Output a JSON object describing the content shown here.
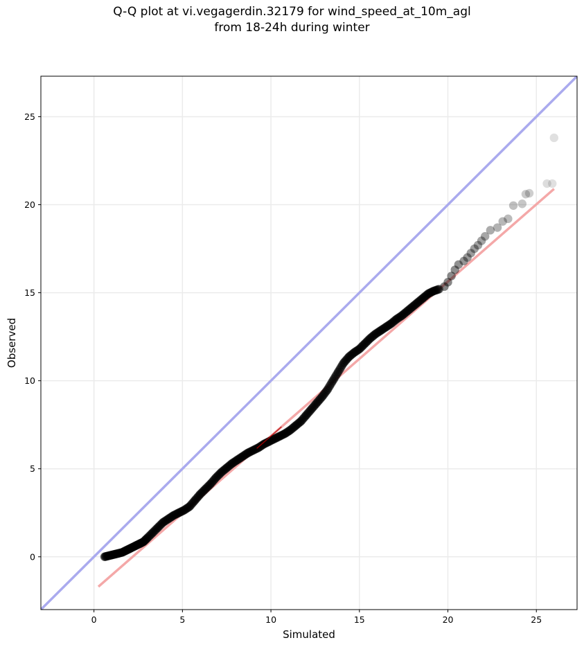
{
  "chart_data": {
    "type": "scatter",
    "title_line1": "Q-Q plot at vi.vegagerdin.32179 for wind_speed_at_10m_agl",
    "title_line2": "from 18-24h during winter",
    "xlabel": "Simulated",
    "ylabel": "Observed",
    "xlim": [
      -3.0,
      27.3
    ],
    "ylim": [
      -3.0,
      27.3
    ],
    "x_ticks": [
      0,
      5,
      10,
      15,
      20,
      25
    ],
    "y_ticks": [
      0,
      5,
      10,
      15,
      20,
      25
    ],
    "grid": true,
    "colors": {
      "points": "#000000",
      "identity_line": "#aaaaee",
      "fit_line": "#f4a8a8",
      "fit_inner": "#b00000"
    },
    "identity_line": {
      "x": [
        -3.0,
        27.3
      ],
      "y": [
        -3.0,
        27.3
      ]
    },
    "fit_line": {
      "x": [
        0.25,
        26.0
      ],
      "y": [
        -1.7,
        20.9
      ]
    },
    "points": {
      "x": [
        0.6,
        0.8,
        1.0,
        1.2,
        1.4,
        1.6,
        1.8,
        2.0,
        2.2,
        2.4,
        2.6,
        2.8,
        3.0,
        3.3,
        3.6,
        3.9,
        4.2,
        4.5,
        4.8,
        5.1,
        5.4,
        5.7,
        6.0,
        6.3,
        6.6,
        6.9,
        7.2,
        7.5,
        7.8,
        8.1,
        8.4,
        8.7,
        9.0,
        9.3,
        9.6,
        9.9,
        10.2,
        10.5,
        10.8,
        11.1,
        11.4,
        11.7,
        12.0,
        12.3,
        12.6,
        12.9,
        13.2,
        13.5,
        13.8,
        14.1,
        14.4,
        14.7,
        15.0,
        15.3,
        15.6,
        15.9,
        16.2,
        16.5,
        16.8,
        17.1,
        17.4,
        17.7,
        18.0,
        18.3,
        18.6,
        18.9,
        19.2,
        19.5,
        19.8,
        20.0,
        20.2,
        20.4,
        20.6,
        20.9,
        21.1,
        21.3,
        21.5,
        21.7,
        21.9,
        22.1,
        22.4,
        22.8,
        23.1,
        23.4,
        23.7,
        24.2,
        24.4,
        24.6,
        25.6,
        25.9,
        26.0
      ],
      "y": [
        0.0,
        0.05,
        0.1,
        0.15,
        0.2,
        0.25,
        0.35,
        0.45,
        0.55,
        0.65,
        0.75,
        0.85,
        1.05,
        1.35,
        1.65,
        1.95,
        2.15,
        2.35,
        2.5,
        2.65,
        2.85,
        3.2,
        3.55,
        3.85,
        4.15,
        4.5,
        4.8,
        5.05,
        5.3,
        5.5,
        5.7,
        5.9,
        6.05,
        6.2,
        6.4,
        6.55,
        6.7,
        6.85,
        7.0,
        7.2,
        7.45,
        7.7,
        8.05,
        8.4,
        8.75,
        9.1,
        9.5,
        10.0,
        10.5,
        11.0,
        11.35,
        11.6,
        11.8,
        12.1,
        12.4,
        12.65,
        12.85,
        13.05,
        13.25,
        13.5,
        13.7,
        13.95,
        14.2,
        14.45,
        14.7,
        14.95,
        15.1,
        15.2,
        15.35,
        15.6,
        15.95,
        16.3,
        16.6,
        16.8,
        17.0,
        17.25,
        17.5,
        17.7,
        17.95,
        18.2,
        18.55,
        18.7,
        19.05,
        19.2,
        19.95,
        20.05,
        20.6,
        20.65,
        21.2,
        21.2,
        23.8
      ]
    }
  }
}
